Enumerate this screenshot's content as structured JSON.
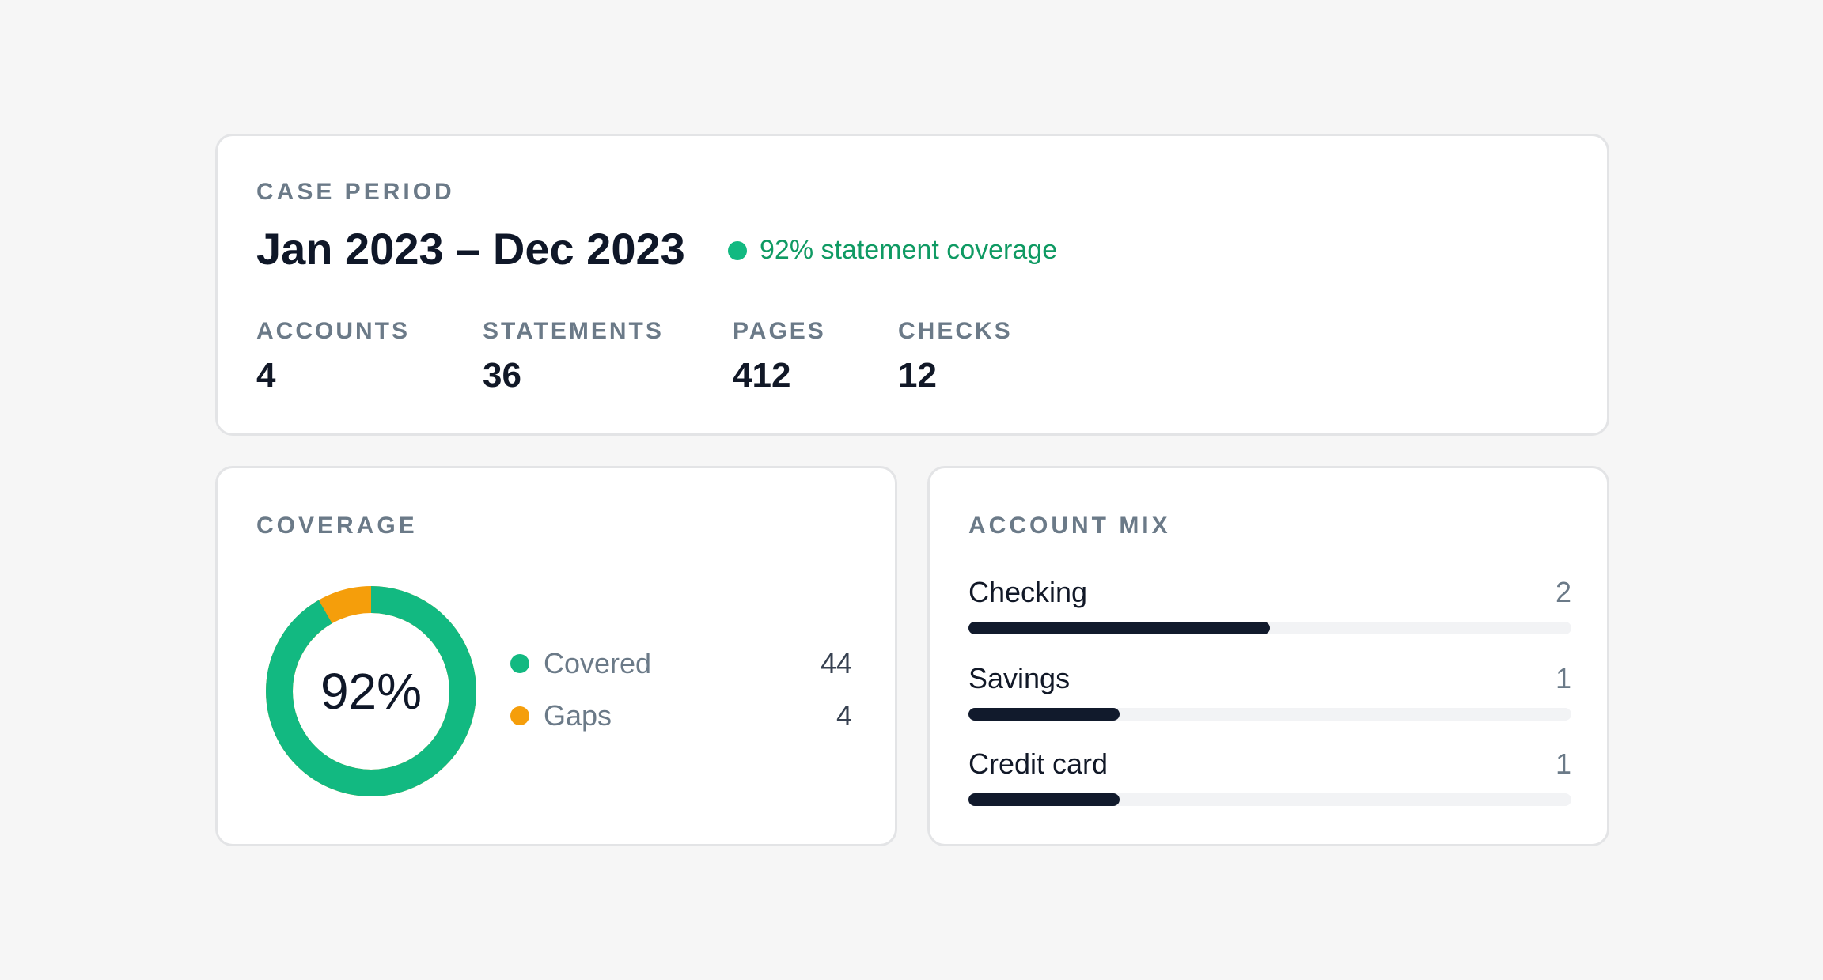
{
  "case_period": {
    "label": "CASE PERIOD",
    "range": "Jan 2023 – Dec 2023",
    "coverage_status": "92% statement coverage",
    "status_color": "#12b981",
    "stats": [
      {
        "label": "ACCOUNTS",
        "value": "4"
      },
      {
        "label": "STATEMENTS",
        "value": "36"
      },
      {
        "label": "PAGES",
        "value": "412"
      },
      {
        "label": "CHECKS",
        "value": "12"
      }
    ]
  },
  "coverage": {
    "label": "COVERAGE",
    "percent_label": "92%",
    "legend": [
      {
        "name": "Covered",
        "value": "44",
        "color": "#12b981"
      },
      {
        "name": "Gaps",
        "value": "4",
        "color": "#f59e0b"
      }
    ]
  },
  "account_mix": {
    "label": "ACCOUNT MIX",
    "max": 4,
    "items": [
      {
        "name": "Checking",
        "count": "2",
        "fraction": 0.5
      },
      {
        "name": "Savings",
        "count": "1",
        "fraction": 0.25
      },
      {
        "name": "Credit card",
        "count": "1",
        "fraction": 0.25
      }
    ],
    "bar_color": "#111a2c"
  }
}
